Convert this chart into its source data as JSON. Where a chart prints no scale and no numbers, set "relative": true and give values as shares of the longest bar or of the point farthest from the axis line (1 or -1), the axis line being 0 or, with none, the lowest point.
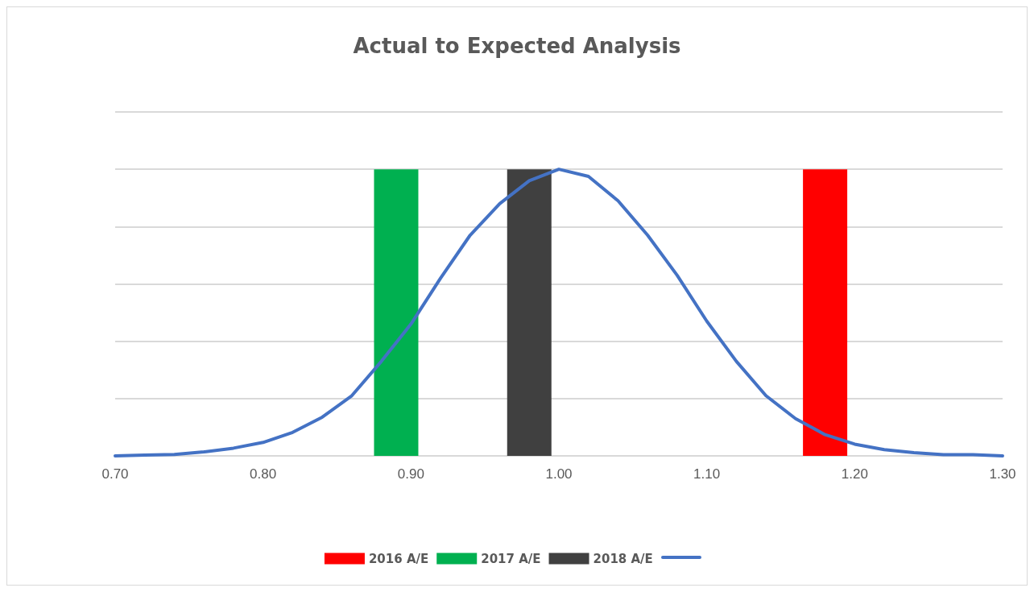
{
  "chart_data": {
    "type": "bar",
    "title": "Actual to Expected Analysis",
    "relative": true,
    "xlim": [
      0.7,
      1.3
    ],
    "xticks": [
      {
        "value": 0.7,
        "label": "0.70"
      },
      {
        "value": 0.8,
        "label": "0.80"
      },
      {
        "value": 0.9,
        "label": "0.90"
      },
      {
        "value": 1.0,
        "label": "1.00"
      },
      {
        "value": 1.1,
        "label": "1.10"
      },
      {
        "value": 1.2,
        "label": "1.20"
      },
      {
        "value": 1.3,
        "label": "1.30"
      }
    ],
    "grid": "y",
    "legend": "bottom",
    "series": [
      {
        "name": "2016 A/E",
        "color": "#ff0000",
        "x": [
          1.18
        ],
        "values": [
          1
        ]
      },
      {
        "name": "2017 A/E",
        "color": "#00b050",
        "x": [
          0.89
        ],
        "values": [
          1
        ]
      },
      {
        "name": "2018 A/E",
        "color": "#404040",
        "x": [
          0.98
        ],
        "values": [
          1
        ]
      },
      {
        "type": "line",
        "color": "#4472c4",
        "marker": "none",
        "line_style": "solid",
        "x": [
          0.7,
          0.72,
          0.74,
          0.76,
          0.78,
          0.8,
          0.82,
          0.84,
          0.86,
          0.88,
          0.9,
          0.92,
          0.94,
          0.96,
          0.98,
          1.0,
          1.02,
          1.04,
          1.06,
          1.08,
          1.1,
          1.12,
          1.14,
          1.16,
          1.18,
          1.2,
          1.22,
          1.24,
          1.26,
          1.28,
          1.3
        ],
        "values": [
          0,
          0.003,
          0.005,
          0.014,
          0.027,
          0.047,
          0.082,
          0.135,
          0.21,
          0.33,
          0.46,
          0.62,
          0.77,
          0.88,
          0.96,
          1.0,
          0.975,
          0.89,
          0.77,
          0.63,
          0.47,
          0.33,
          0.21,
          0.13,
          0.074,
          0.041,
          0.022,
          0.011,
          0.004,
          0.004,
          0
        ]
      }
    ]
  }
}
